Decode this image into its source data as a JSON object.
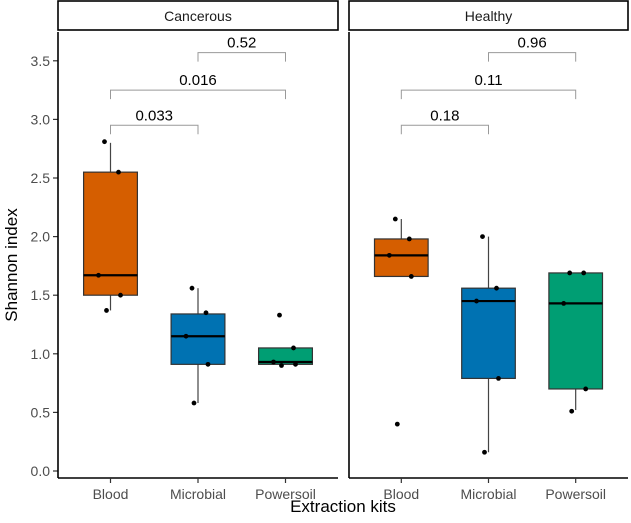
{
  "chart_data": {
    "type": "boxplot",
    "xlabel": "Extraction kits",
    "ylabel": "Shannon index",
    "ylim": [
      0,
      3.75
    ],
    "yticks": [
      "0.0",
      "0.5",
      "1.0",
      "1.5",
      "2.0",
      "2.5",
      "3.0",
      "3.5"
    ],
    "categories": [
      "Blood",
      "Microbial",
      "Powersoil"
    ],
    "colors": {
      "Blood": "#D55E00",
      "Microbial": "#0072B2",
      "Powersoil": "#009E73"
    },
    "grid": false,
    "panels": [
      {
        "title": "Cancerous",
        "boxes": [
          {
            "category": "Blood",
            "q1": 1.5,
            "median": 1.67,
            "q3": 2.55,
            "whisker_low": 1.37,
            "whisker_high": 2.8,
            "points": [
              2.81,
              2.55,
              1.67,
              1.5,
              1.37
            ]
          },
          {
            "category": "Microbial",
            "q1": 0.91,
            "median": 1.15,
            "q3": 1.34,
            "whisker_low": 0.58,
            "whisker_high": 1.56,
            "points": [
              1.56,
              1.35,
              1.15,
              0.91,
              0.58
            ]
          },
          {
            "category": "Powersoil",
            "q1": 0.91,
            "median": 0.93,
            "q3": 1.05,
            "whisker_low": 0.91,
            "whisker_high": 1.05,
            "points": [
              1.33,
              1.05,
              0.93,
              0.91,
              0.9
            ]
          }
        ],
        "comparisons": [
          {
            "from": "Blood",
            "to": "Microbial",
            "label": "0.033",
            "y": 2.95
          },
          {
            "from": "Blood",
            "to": "Powersoil",
            "label": "0.016",
            "y": 3.25
          },
          {
            "from": "Microbial",
            "to": "Powersoil",
            "label": "0.52",
            "y": 3.57
          }
        ]
      },
      {
        "title": "Healthy",
        "boxes": [
          {
            "category": "Blood",
            "q1": 1.66,
            "median": 1.84,
            "q3": 1.98,
            "whisker_low": 1.66,
            "whisker_high": 2.15,
            "points": [
              2.15,
              1.98,
              1.84,
              1.66,
              0.4
            ]
          },
          {
            "category": "Microbial",
            "q1": 0.79,
            "median": 1.45,
            "q3": 1.56,
            "whisker_low": 0.16,
            "whisker_high": 2.0,
            "points": [
              2.0,
              1.56,
              1.45,
              0.79,
              0.16
            ]
          },
          {
            "category": "Powersoil",
            "q1": 0.7,
            "median": 1.43,
            "q3": 1.69,
            "whisker_low": 0.52,
            "whisker_high": 1.69,
            "points": [
              1.69,
              1.69,
              1.43,
              0.7,
              0.51
            ]
          }
        ],
        "comparisons": [
          {
            "from": "Blood",
            "to": "Microbial",
            "label": "0.18",
            "y": 2.95
          },
          {
            "from": "Blood",
            "to": "Powersoil",
            "label": "0.11",
            "y": 3.25
          },
          {
            "from": "Microbial",
            "to": "Powersoil",
            "label": "0.96",
            "y": 3.57
          }
        ]
      }
    ]
  }
}
